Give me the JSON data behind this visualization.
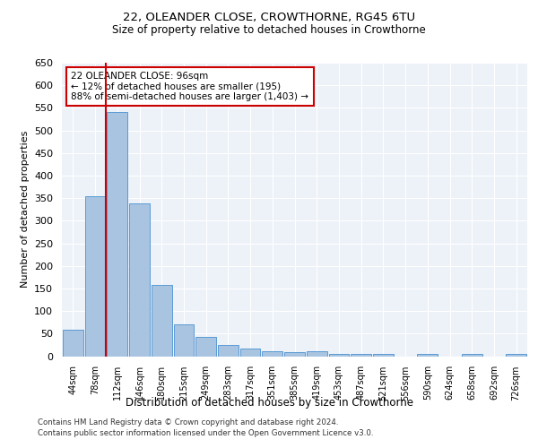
{
  "title1": "22, OLEANDER CLOSE, CROWTHORNE, RG45 6TU",
  "title2": "Size of property relative to detached houses in Crowthorne",
  "xlabel": "Distribution of detached houses by size in Crowthorne",
  "ylabel": "Number of detached properties",
  "categories": [
    "44sqm",
    "78sqm",
    "112sqm",
    "146sqm",
    "180sqm",
    "215sqm",
    "249sqm",
    "283sqm",
    "317sqm",
    "351sqm",
    "385sqm",
    "419sqm",
    "453sqm",
    "487sqm",
    "521sqm",
    "556sqm",
    "590sqm",
    "624sqm",
    "658sqm",
    "692sqm",
    "726sqm"
  ],
  "values": [
    58,
    355,
    540,
    338,
    158,
    70,
    42,
    25,
    17,
    10,
    8,
    10,
    4,
    4,
    4,
    0,
    5,
    0,
    5,
    0,
    5
  ],
  "bar_color": "#a8c4e0",
  "bar_edgecolor": "#5b9bd5",
  "vline_x": 1.5,
  "vline_color": "#cc0000",
  "annotation_text": "22 OLEANDER CLOSE: 96sqm\n← 12% of detached houses are smaller (195)\n88% of semi-detached houses are larger (1,403) →",
  "annotation_box_color": "#cc0000",
  "ylim": [
    0,
    650
  ],
  "yticks": [
    0,
    50,
    100,
    150,
    200,
    250,
    300,
    350,
    400,
    450,
    500,
    550,
    600,
    650
  ],
  "footer1": "Contains HM Land Registry data © Crown copyright and database right 2024.",
  "footer2": "Contains public sector information licensed under the Open Government Licence v3.0.",
  "plot_bg_color": "#edf2f9"
}
